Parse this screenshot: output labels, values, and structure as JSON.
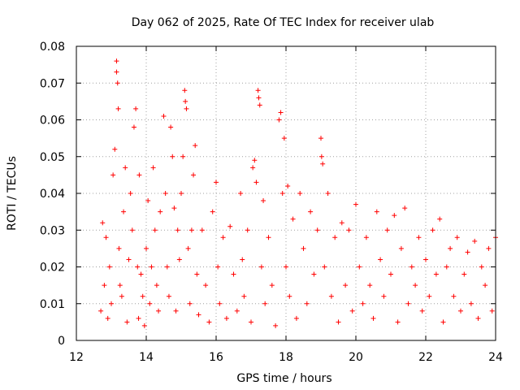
{
  "chart_data": {
    "type": "scatter",
    "title": "Day 062 of 2025, Rate Of TEC Index for receiver ulab",
    "xlabel": "GPS time / hours",
    "ylabel": "ROTI / TECUs",
    "xlim": [
      12,
      24
    ],
    "ylim": [
      0,
      0.08
    ],
    "xticks": [
      "12",
      "14",
      "16",
      "18",
      "20",
      "22",
      "24"
    ],
    "yticks": [
      "0",
      "0.01",
      "0.02",
      "0.03",
      "0.04",
      "0.05",
      "0.06",
      "0.07",
      "0.08"
    ],
    "grid": true,
    "marker": "+",
    "color": "#ff0000",
    "series": [
      {
        "x": [
          12.7,
          12.75,
          12.8,
          12.85,
          12.9,
          12.95,
          13.0,
          13.05,
          13.1,
          13.15,
          13.15,
          13.18,
          13.2,
          13.22,
          13.25,
          13.3,
          13.35,
          13.4,
          13.45,
          13.5,
          13.55,
          13.6,
          13.65,
          13.7,
          13.75,
          13.78,
          13.8,
          13.85,
          13.9,
          13.95,
          14.0,
          14.05,
          14.1,
          14.15,
          14.2,
          14.25,
          14.3,
          14.35,
          14.4,
          14.5,
          14.55,
          14.6,
          14.65,
          14.7,
          14.75,
          14.8,
          14.85,
          14.9,
          14.95,
          15.0,
          15.05,
          15.1,
          15.12,
          15.15,
          15.2,
          15.25,
          15.3,
          15.35,
          15.4,
          15.45,
          15.5,
          15.6,
          15.7,
          15.8,
          15.9,
          16.0,
          16.05,
          16.1,
          16.2,
          16.3,
          16.4,
          16.5,
          16.6,
          16.7,
          16.75,
          16.8,
          16.9,
          17.0,
          17.05,
          17.1,
          17.15,
          17.2,
          17.22,
          17.25,
          17.3,
          17.35,
          17.4,
          17.5,
          17.6,
          17.7,
          17.8,
          17.85,
          17.9,
          17.95,
          18.0,
          18.05,
          18.1,
          18.2,
          18.3,
          18.4,
          18.5,
          18.6,
          18.7,
          18.8,
          18.9,
          19.0,
          19.02,
          19.05,
          19.1,
          19.2,
          19.3,
          19.4,
          19.5,
          19.6,
          19.7,
          19.8,
          19.9,
          20.0,
          20.1,
          20.2,
          20.3,
          20.4,
          20.5,
          20.6,
          20.7,
          20.8,
          20.9,
          21.0,
          21.1,
          21.2,
          21.3,
          21.4,
          21.5,
          21.6,
          21.7,
          21.8,
          21.9,
          22.0,
          22.1,
          22.2,
          22.3,
          22.4,
          22.5,
          22.6,
          22.7,
          22.8,
          22.9,
          23.0,
          23.1,
          23.2,
          23.3,
          23.4,
          23.5,
          23.6,
          23.7,
          23.8,
          23.9,
          24.0
        ],
        "y": [
          0.008,
          0.032,
          0.015,
          0.028,
          0.006,
          0.02,
          0.01,
          0.045,
          0.052,
          0.076,
          0.073,
          0.07,
          0.063,
          0.025,
          0.015,
          0.012,
          0.035,
          0.047,
          0.005,
          0.022,
          0.04,
          0.03,
          0.058,
          0.063,
          0.02,
          0.006,
          0.045,
          0.018,
          0.012,
          0.004,
          0.025,
          0.038,
          0.01,
          0.02,
          0.047,
          0.03,
          0.015,
          0.008,
          0.035,
          0.061,
          0.04,
          0.02,
          0.012,
          0.058,
          0.05,
          0.036,
          0.008,
          0.03,
          0.022,
          0.04,
          0.05,
          0.068,
          0.065,
          0.063,
          0.025,
          0.01,
          0.03,
          0.045,
          0.053,
          0.018,
          0.007,
          0.03,
          0.015,
          0.005,
          0.035,
          0.043,
          0.02,
          0.01,
          0.028,
          0.006,
          0.031,
          0.018,
          0.008,
          0.04,
          0.022,
          0.012,
          0.03,
          0.005,
          0.047,
          0.049,
          0.043,
          0.068,
          0.066,
          0.064,
          0.02,
          0.038,
          0.01,
          0.028,
          0.015,
          0.004,
          0.06,
          0.062,
          0.04,
          0.055,
          0.02,
          0.042,
          0.012,
          0.033,
          0.006,
          0.04,
          0.025,
          0.01,
          0.035,
          0.018,
          0.03,
          0.055,
          0.05,
          0.048,
          0.02,
          0.04,
          0.012,
          0.028,
          0.005,
          0.032,
          0.015,
          0.03,
          0.008,
          0.037,
          0.02,
          0.01,
          0.028,
          0.015,
          0.006,
          0.035,
          0.022,
          0.012,
          0.03,
          0.018,
          0.034,
          0.005,
          0.025,
          0.036,
          0.01,
          0.02,
          0.015,
          0.028,
          0.008,
          0.022,
          0.012,
          0.03,
          0.018,
          0.033,
          0.005,
          0.02,
          0.025,
          0.012,
          0.028,
          0.008,
          0.018,
          0.024,
          0.01,
          0.027,
          0.006,
          0.02,
          0.015,
          0.025,
          0.008,
          0.028
        ]
      }
    ]
  }
}
